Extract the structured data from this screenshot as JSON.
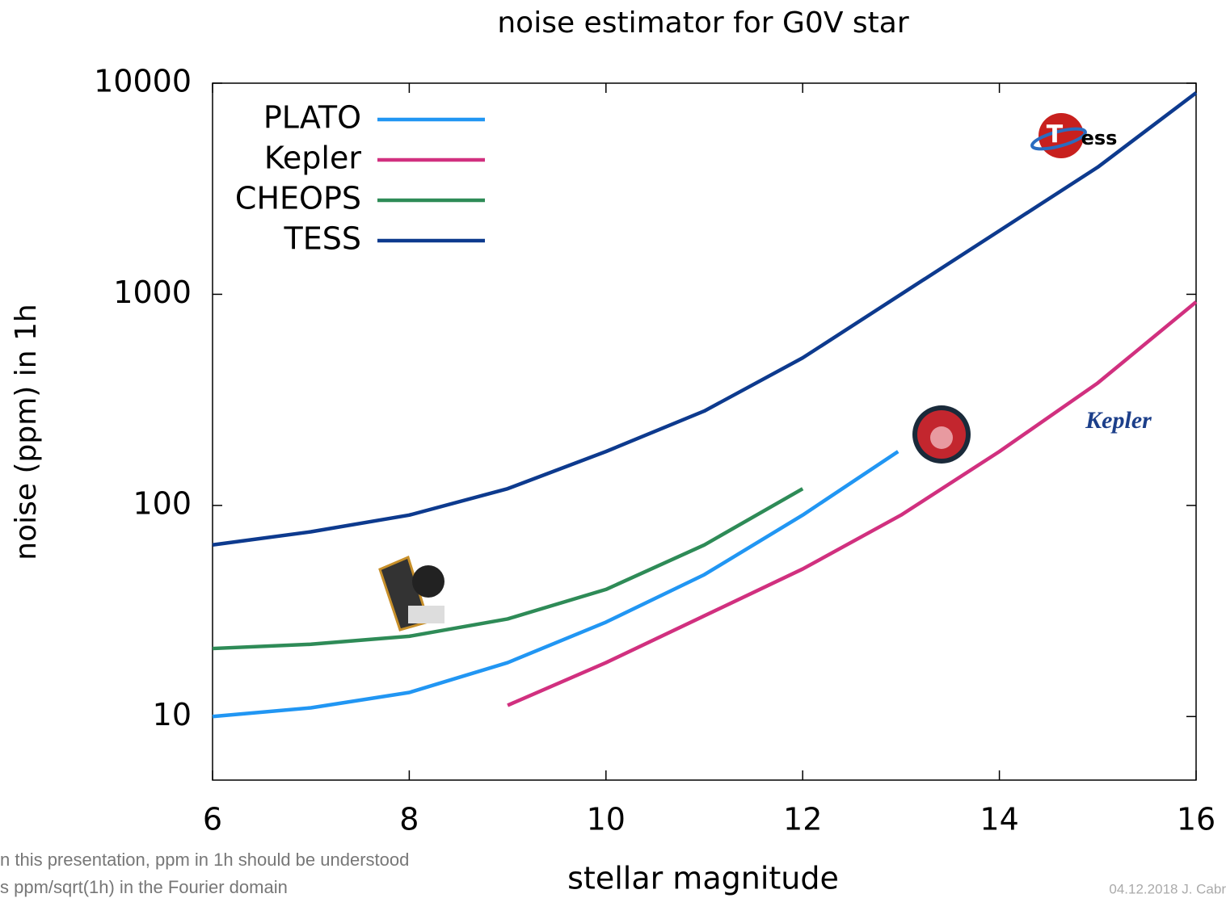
{
  "chart_data": {
    "type": "line",
    "title": "noise estimator for G0V star",
    "x_label": "stellar magnitude",
    "y_label": "noise (ppm) in 1h",
    "log_y": true,
    "grid": false,
    "legend": "upper left",
    "xlim": [
      6,
      16
    ],
    "xticks": [
      6,
      8,
      10,
      12,
      14,
      16
    ],
    "ylim": [
      5,
      10000
    ],
    "yticks": [
      10,
      100,
      1000,
      10000
    ],
    "series": [
      {
        "name": "PLATO",
        "color": "#2196f3",
        "x": [
          6,
          7,
          8,
          9,
          10,
          11,
          12,
          12.97
        ],
        "values": [
          10,
          11,
          13,
          18,
          28,
          47,
          90,
          180
        ]
      },
      {
        "name": "Kepler",
        "color": "#d1307f",
        "x": [
          9,
          10,
          11,
          12,
          13,
          14,
          15,
          16
        ],
        "values": [
          11.3,
          18,
          30,
          50,
          90,
          180,
          380,
          920
        ]
      },
      {
        "name": "CHEOPS",
        "color": "#2e8b57",
        "x": [
          6,
          7,
          8,
          9,
          10,
          11,
          12
        ],
        "values": [
          21,
          22,
          24,
          29,
          40,
          65,
          120
        ]
      },
      {
        "name": "TESS",
        "color": "#0d3a8e",
        "x": [
          6,
          7,
          8,
          9,
          10,
          11,
          12,
          13,
          14,
          15,
          16
        ],
        "values": [
          65,
          75,
          90,
          120,
          180,
          280,
          500,
          1000,
          2000,
          4000,
          9000
        ]
      }
    ],
    "annotations": [
      "Kepler",
      "ess"
    ]
  },
  "footnote": [
    "n this presentation, ppm in 1h should be understood",
    "s ppm/sqrt(1h) in the Fourier domain"
  ],
  "footer_date": "04.12.2018 J. Cabr"
}
